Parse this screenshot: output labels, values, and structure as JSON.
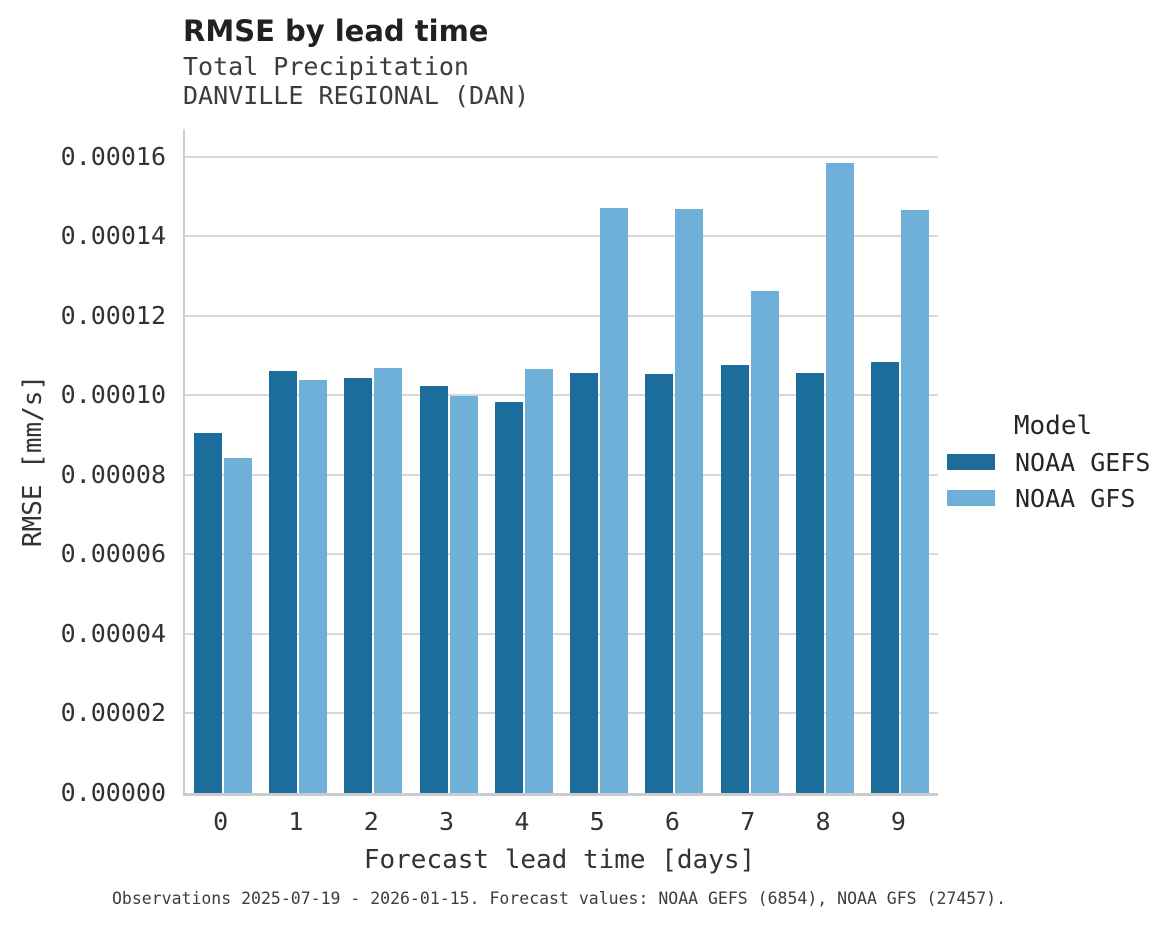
{
  "header": {
    "title": "RMSE by lead time",
    "subtitle_line1": "Total Precipitation",
    "subtitle_line2": "DANVILLE REGIONAL (DAN)"
  },
  "chart_data": {
    "type": "bar",
    "title": "RMSE by lead time",
    "subtitle": [
      "Total Precipitation",
      "DANVILLE REGIONAL (DAN)"
    ],
    "xlabel": "Forecast lead time [days]",
    "ylabel": "RMSE [mm/s]",
    "categories": [
      "0",
      "1",
      "2",
      "3",
      "4",
      "5",
      "6",
      "7",
      "8",
      "9"
    ],
    "series": [
      {
        "name": "NOAA GEFS",
        "color": "#1c6d9c",
        "values": [
          9.06e-05,
          0.0001062,
          0.0001043,
          0.0001024,
          9.84e-05,
          0.0001056,
          0.0001054,
          0.0001077,
          0.0001056,
          0.0001084
        ]
      },
      {
        "name": "NOAA GFS",
        "color": "#6fb0d8",
        "values": [
          8.43e-05,
          0.000104,
          0.0001068,
          9.98e-05,
          0.0001066,
          0.0001471,
          0.0001468,
          0.0001263,
          0.0001585,
          0.0001466
        ]
      }
    ],
    "ylim": [
      0,
      0.000167
    ],
    "yticks": [
      0.0,
      2e-05,
      4e-05,
      6e-05,
      8e-05,
      0.0001,
      0.00012,
      0.00014,
      0.00016
    ],
    "ytick_labels": [
      "0.00000",
      "0.00002",
      "0.00004",
      "0.00006",
      "0.00008",
      "0.00010",
      "0.00012",
      "0.00014",
      "0.00016"
    ],
    "grid": "horizontal",
    "legend_position": "right"
  },
  "legend": {
    "title": "Model",
    "items": [
      {
        "label": "NOAA GEFS",
        "color": "#1c6d9c"
      },
      {
        "label": "NOAA GFS",
        "color": "#6fb0d8"
      }
    ]
  },
  "footer": {
    "text": "Observations 2025-07-19 - 2026-01-15. Forecast values: NOAA GEFS (6854), NOAA GFS (27457)."
  }
}
